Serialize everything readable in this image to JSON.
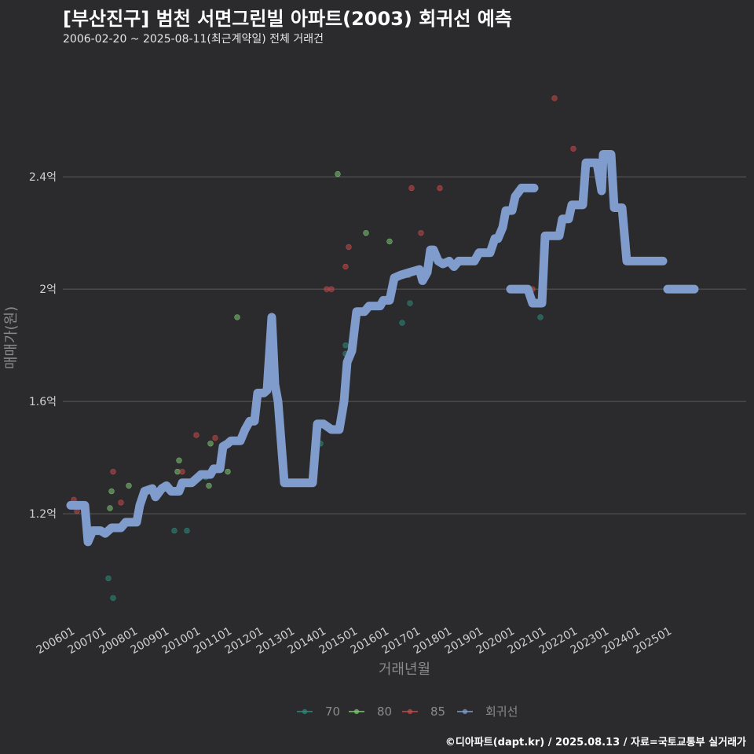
{
  "title": "[부산진구] 범천 서면그린빌 아파트(2003) 회귀선 예측",
  "subtitle": "2006-02-20 ~ 2025-08-11(최근계약일) 전체 거래건",
  "caption": "©디아파트(dapt.kr) / 2025.08.13 / 자료=국토교통부 실거래가",
  "chart_data": {
    "type": "scatter",
    "title": "[부산진구] 범천 서면그린빌 아파트(2003) 회귀선 예측",
    "xlabel": "거래년월",
    "ylabel": "매매가(원)",
    "xlim": [
      2005.75,
      2027.5
    ],
    "ylim": [
      0.82,
      2.82
    ],
    "y_ticks": [
      1.2,
      1.6,
      2.0,
      2.4
    ],
    "y_tick_labels": [
      "1.2억",
      "1.6억",
      "2억",
      "2.4억"
    ],
    "x_ticks": [
      2006,
      2007,
      2008,
      2009,
      2010,
      2011,
      2012,
      2013,
      2014,
      2015,
      2016,
      2017,
      2018,
      2019,
      2020,
      2021,
      2022,
      2023,
      2024,
      2025
    ],
    "x_tick_labels": [
      "200601",
      "200701",
      "200801",
      "200901",
      "201001",
      "201101",
      "201201",
      "201301",
      "201401",
      "201501",
      "201601",
      "201701",
      "201801",
      "201901",
      "202001",
      "202101",
      "202201",
      "202301",
      "202401",
      "202501"
    ],
    "grid": "horizontal",
    "legend_position": "bottom",
    "series": [
      {
        "name": "70",
        "color": "#2e8b7a",
        "points": [
          [
            2007.2,
            0.97
          ],
          [
            2007.35,
            0.9
          ],
          [
            2009.3,
            1.14
          ],
          [
            2009.7,
            1.14
          ],
          [
            2010.3,
            1.33
          ],
          [
            2013.95,
            1.45
          ],
          [
            2014.75,
            1.8
          ],
          [
            2014.75,
            1.77
          ],
          [
            2016.55,
            1.88
          ],
          [
            2016.8,
            1.95
          ],
          [
            2020.95,
            1.9
          ]
        ]
      },
      {
        "name": "80",
        "color": "#7ec872",
        "points": [
          [
            2007.25,
            1.22
          ],
          [
            2007.3,
            1.28
          ],
          [
            2007.85,
            1.3
          ],
          [
            2009.4,
            1.35
          ],
          [
            2009.45,
            1.39
          ],
          [
            2010.4,
            1.3
          ],
          [
            2010.45,
            1.45
          ],
          [
            2011.0,
            1.35
          ],
          [
            2011.3,
            1.9
          ],
          [
            2014.5,
            2.41
          ],
          [
            2015.4,
            2.2
          ],
          [
            2016.15,
            2.17
          ]
        ]
      },
      {
        "name": "85",
        "color": "#c74a4a",
        "points": [
          [
            2006.1,
            1.25
          ],
          [
            2006.2,
            1.21
          ],
          [
            2007.35,
            1.35
          ],
          [
            2007.6,
            1.24
          ],
          [
            2009.55,
            1.35
          ],
          [
            2010.0,
            1.48
          ],
          [
            2010.6,
            1.47
          ],
          [
            2014.15,
            2.0
          ],
          [
            2014.3,
            2.0
          ],
          [
            2014.75,
            2.08
          ],
          [
            2014.85,
            2.15
          ],
          [
            2016.75,
            2.05
          ],
          [
            2016.85,
            2.36
          ],
          [
            2017.15,
            2.2
          ],
          [
            2017.75,
            2.36
          ],
          [
            2020.7,
            2.0
          ],
          [
            2021.4,
            2.68
          ],
          [
            2022.0,
            2.5
          ]
        ]
      },
      {
        "name": "회귀선",
        "color": "#7f9ccc",
        "segments": [
          [
            [
              2006.0,
              1.23
            ],
            [
              2006.45,
              1.23
            ],
            [
              2006.55,
              1.1
            ],
            [
              2006.7,
              1.14
            ],
            [
              2006.95,
              1.14
            ],
            [
              2007.1,
              1.13
            ],
            [
              2007.3,
              1.15
            ],
            [
              2007.6,
              1.15
            ],
            [
              2007.75,
              1.17
            ],
            [
              2008.1,
              1.17
            ],
            [
              2008.2,
              1.23
            ],
            [
              2008.35,
              1.28
            ],
            [
              2008.6,
              1.29
            ],
            [
              2008.7,
              1.26
            ],
            [
              2008.9,
              1.29
            ],
            [
              2009.05,
              1.3
            ],
            [
              2009.2,
              1.28
            ],
            [
              2009.45,
              1.28
            ],
            [
              2009.55,
              1.31
            ],
            [
              2009.85,
              1.31
            ],
            [
              2010.05,
              1.33
            ],
            [
              2010.15,
              1.34
            ],
            [
              2010.45,
              1.34
            ],
            [
              2010.55,
              1.36
            ],
            [
              2010.75,
              1.36
            ],
            [
              2010.85,
              1.44
            ],
            [
              2011.0,
              1.45
            ],
            [
              2011.1,
              1.46
            ],
            [
              2011.4,
              1.46
            ],
            [
              2011.55,
              1.5
            ],
            [
              2011.7,
              1.53
            ],
            [
              2011.85,
              1.53
            ],
            [
              2011.95,
              1.63
            ],
            [
              2012.15,
              1.63
            ],
            [
              2012.25,
              1.64
            ],
            [
              2012.4,
              1.9
            ],
            [
              2012.5,
              1.66
            ],
            [
              2012.6,
              1.6
            ],
            [
              2012.8,
              1.31
            ],
            [
              2013.7,
              1.31
            ],
            [
              2013.85,
              1.52
            ],
            [
              2014.05,
              1.52
            ],
            [
              2014.3,
              1.5
            ],
            [
              2014.55,
              1.5
            ],
            [
              2014.7,
              1.6
            ],
            [
              2014.8,
              1.74
            ],
            [
              2014.95,
              1.78
            ],
            [
              2015.1,
              1.92
            ],
            [
              2015.35,
              1.92
            ],
            [
              2015.5,
              1.94
            ],
            [
              2015.85,
              1.94
            ],
            [
              2015.95,
              1.96
            ],
            [
              2016.15,
              1.96
            ],
            [
              2016.3,
              2.04
            ],
            [
              2016.5,
              2.05
            ],
            [
              2016.8,
              2.06
            ],
            [
              2017.1,
              2.07
            ],
            [
              2017.2,
              2.03
            ],
            [
              2017.35,
              2.06
            ],
            [
              2017.45,
              2.14
            ],
            [
              2017.55,
              2.14
            ],
            [
              2017.7,
              2.1
            ],
            [
              2017.85,
              2.09
            ],
            [
              2018.05,
              2.1
            ],
            [
              2018.2,
              2.08
            ],
            [
              2018.35,
              2.1
            ],
            [
              2018.85,
              2.1
            ],
            [
              2019.0,
              2.13
            ],
            [
              2019.35,
              2.13
            ],
            [
              2019.5,
              2.18
            ],
            [
              2019.6,
              2.18
            ],
            [
              2019.75,
              2.22
            ],
            [
              2019.85,
              2.28
            ],
            [
              2020.05,
              2.28
            ],
            [
              2020.15,
              2.33
            ],
            [
              2020.35,
              2.36
            ],
            [
              2020.75,
              2.36
            ]
          ],
          [
            [
              2020.0,
              2.0
            ],
            [
              2020.55,
              2.0
            ],
            [
              2020.7,
              1.95
            ],
            [
              2021.0,
              1.95
            ],
            [
              2021.1,
              2.19
            ],
            [
              2021.55,
              2.19
            ],
            [
              2021.65,
              2.25
            ],
            [
              2021.85,
              2.25
            ],
            [
              2021.95,
              2.3
            ],
            [
              2022.3,
              2.3
            ],
            [
              2022.4,
              2.45
            ],
            [
              2022.75,
              2.45
            ],
            [
              2022.9,
              2.35
            ],
            [
              2022.95,
              2.48
            ],
            [
              2023.2,
              2.48
            ],
            [
              2023.3,
              2.29
            ],
            [
              2023.55,
              2.29
            ],
            [
              2023.7,
              2.1
            ],
            [
              2024.85,
              2.1
            ]
          ],
          [
            [
              2025.0,
              2.0
            ],
            [
              2025.85,
              2.0
            ]
          ]
        ]
      }
    ]
  }
}
